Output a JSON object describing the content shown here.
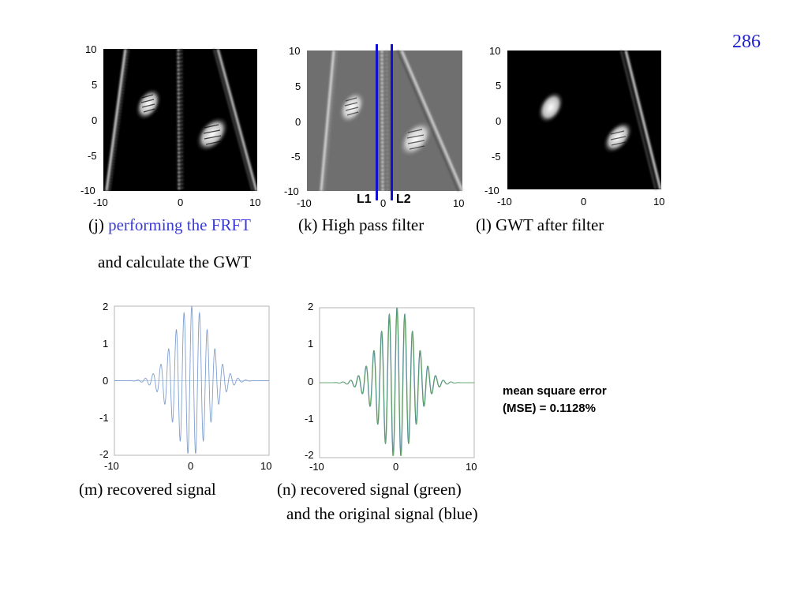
{
  "page_number": "286",
  "top_panels": {
    "tick_labels": {
      "y_10": "10",
      "y_5": "5",
      "y_0": "0",
      "y_m5": "-5",
      "y_m10": "-10",
      "x_m10": "-10",
      "x_0": "0",
      "x_10": "10"
    },
    "line_labels": {
      "l1": "L1",
      "l2": "L2"
    },
    "colors": {
      "filter_line": "#1010d0"
    }
  },
  "captions": {
    "j_prefix": "(j) ",
    "j_highlight": "performing the FRFT",
    "j_line2": "and calculate the GWT",
    "k": "(k) High pass filter",
    "l": "(l) GWT after filter",
    "m": "(m) recovered signal",
    "n_line1": "(n) recovered signal (green)",
    "n_line2": "and the original signal (blue)"
  },
  "plots": {
    "ticks": {
      "y_2": "2",
      "y_1": "1",
      "y_0": "0",
      "y_m1": "-1",
      "y_m2": "-2",
      "x_m10": "-10",
      "x_0": "0",
      "x_10": "10"
    }
  },
  "mse": {
    "line1": "mean square error",
    "line2": "(MSE) = 0.1128%"
  },
  "chart_data": [
    {
      "type": "line",
      "panel": "(m)",
      "x_range": [
        -10,
        10
      ],
      "ylim": [
        -2,
        2
      ],
      "series": [
        {
          "color": "#7f9fcf",
          "function": "gaussian-modulated cosine",
          "peak": 2,
          "carrier_period": 1.0,
          "gaussian_sigma": 2.3
        }
      ]
    },
    {
      "type": "line",
      "panel": "(n)",
      "x_range": [
        -10,
        10
      ],
      "ylim": [
        -2,
        2
      ],
      "series": [
        {
          "color": "#2f6f8f",
          "function": "gaussian-modulated cosine",
          "peak": 2,
          "carrier_period": 1.0,
          "gaussian_sigma": 2.3
        },
        {
          "color": "#6fae6f",
          "function": "gaussian-modulated cosine",
          "peak": 2,
          "carrier_period": 1.0,
          "gaussian_sigma": 2.3
        }
      ]
    }
  ]
}
